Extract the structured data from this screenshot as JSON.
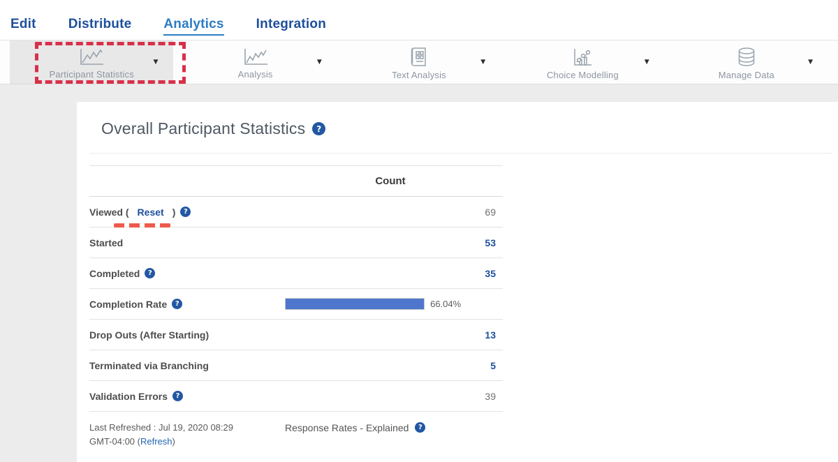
{
  "nav": {
    "items": [
      {
        "label": "Edit"
      },
      {
        "label": "Distribute"
      },
      {
        "label": "Analytics"
      },
      {
        "label": "Integration"
      }
    ],
    "active": "Analytics"
  },
  "toolbar": {
    "items": [
      {
        "label": "Participant Statistics",
        "icon": "line-chart-icon",
        "selected": true,
        "annotated": true
      },
      {
        "label": "Analysis",
        "icon": "line-chart-icon",
        "selected": false
      },
      {
        "label": "Text Analysis",
        "icon": "document-grid-icon",
        "selected": false
      },
      {
        "label": "Choice Modelling",
        "icon": "scatter-trend-icon",
        "selected": false
      },
      {
        "label": "Manage Data",
        "icon": "database-icon",
        "selected": false
      }
    ]
  },
  "main": {
    "heading": "Overall Participant Statistics"
  },
  "table": {
    "count_header": "Count",
    "viewed": {
      "prefix": "Viewed (",
      "reset_label": "Reset",
      "suffix": ")",
      "value": "69"
    },
    "started": {
      "label": "Started",
      "value": "53"
    },
    "completed": {
      "label": "Completed",
      "value": "35"
    },
    "completion_rate": {
      "label": "Completion Rate",
      "percent": 66.04,
      "percent_label": "66.04%"
    },
    "drop_outs": {
      "label": "Drop Outs (After Starting)",
      "value": "13"
    },
    "terminated": {
      "label": "Terminated via Branching",
      "value": "5"
    },
    "validation_errors": {
      "label": "Validation Errors",
      "value": "39"
    }
  },
  "footer": {
    "last_refreshed_line1": "Last Refreshed : Jul 19, 2020 08:29",
    "last_refreshed_line2_prefix": "GMT-04:00 (",
    "refresh_label": "Refresh",
    "last_refreshed_line2_suffix": ")",
    "response_rates_label": "Response Rates - Explained"
  },
  "colors": {
    "accent_blue": "#1d4f9c",
    "active_tab_blue": "#2d7cc3",
    "annotation_red": "#d8304a",
    "underline_red": "#ee5a4b",
    "bar_fill_blue": "#4d76cc",
    "help_icon_blue": "#2257a3",
    "toolbar_selected_gray": "#e8e8e8",
    "page_background": "#ececec"
  }
}
